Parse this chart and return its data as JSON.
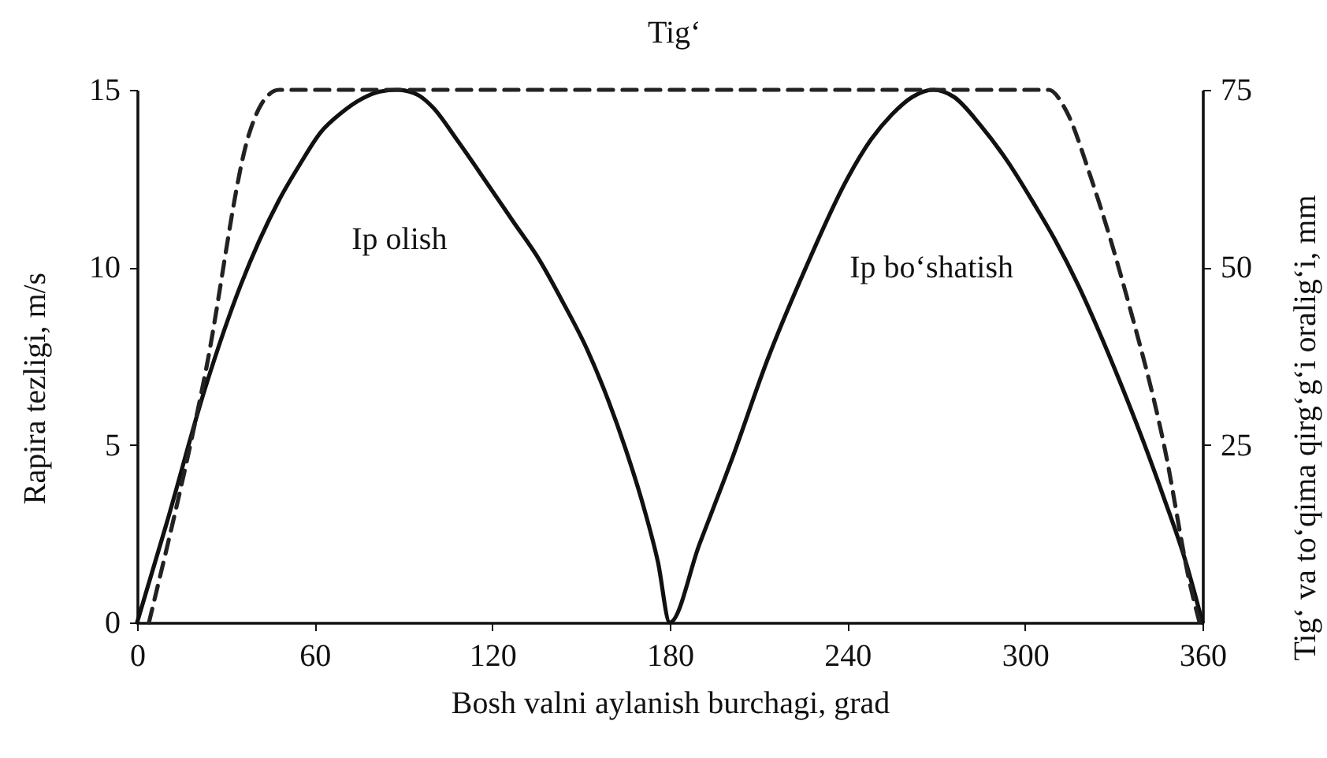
{
  "chart_data": {
    "type": "line",
    "xlabel": "Bosh valni aylanish burchagi, grad",
    "ylabel": "Rapira tezligi, m/s",
    "y2label": "Tig‘ va to‘qima qirg‘g‘i oralig‘i, mm",
    "xlim": [
      0,
      360
    ],
    "xticks": [
      0,
      60,
      120,
      180,
      240,
      300,
      360
    ],
    "ylim": [
      0,
      15
    ],
    "yticks": [
      0,
      5,
      10,
      15
    ],
    "y2lim": [
      0,
      75
    ],
    "y2ticks": [
      25,
      50,
      75
    ],
    "grid": false,
    "marker": "none",
    "annotations": [
      {
        "text": "Ip olish",
        "x": 62,
        "y": 13.8
      },
      {
        "text": "Ip bo‘shatish",
        "x": 294,
        "y": 13.0
      }
    ],
    "series": [
      {
        "color": "#111111",
        "line_style": "solid",
        "x": [
          0,
          10,
          23,
          35,
          48,
          55,
          62,
          69,
          76,
          82,
          88,
          95,
          100,
          108,
          118,
          127,
          136,
          144,
          152,
          159,
          165,
          171,
          176,
          180,
          190,
          201,
          213,
          226,
          240,
          248,
          255,
          262,
          269,
          276,
          285,
          294,
          303,
          310,
          318,
          325,
          332,
          340,
          347,
          354,
          360
        ],
        "values": [
          0,
          2.8,
          6.6,
          9.5,
          11.9,
          12.9,
          13.8,
          14.35,
          14.75,
          14.95,
          15,
          14.85,
          14.5,
          13.6,
          12.4,
          11.3,
          10.2,
          9.0,
          7.7,
          6.3,
          4.9,
          3.3,
          1.7,
          0,
          2.2,
          4.6,
          7.4,
          10.0,
          12.5,
          13.6,
          14.3,
          14.8,
          15,
          14.8,
          14.0,
          13.0,
          11.8,
          10.8,
          9.5,
          8.2,
          6.8,
          5.1,
          3.5,
          1.8,
          0
        ]
      },
      {
        "name": "Tig‘",
        "color": "#222222",
        "line_style": "dashed",
        "axis": "y2",
        "x": [
          4,
          23,
          38,
          42,
          48,
          308,
          314,
          322,
          335,
          347,
          356,
          359
        ],
        "values": [
          0,
          35,
          69,
          73,
          75,
          75,
          72,
          63,
          45,
          25,
          5,
          0
        ]
      }
    ]
  }
}
